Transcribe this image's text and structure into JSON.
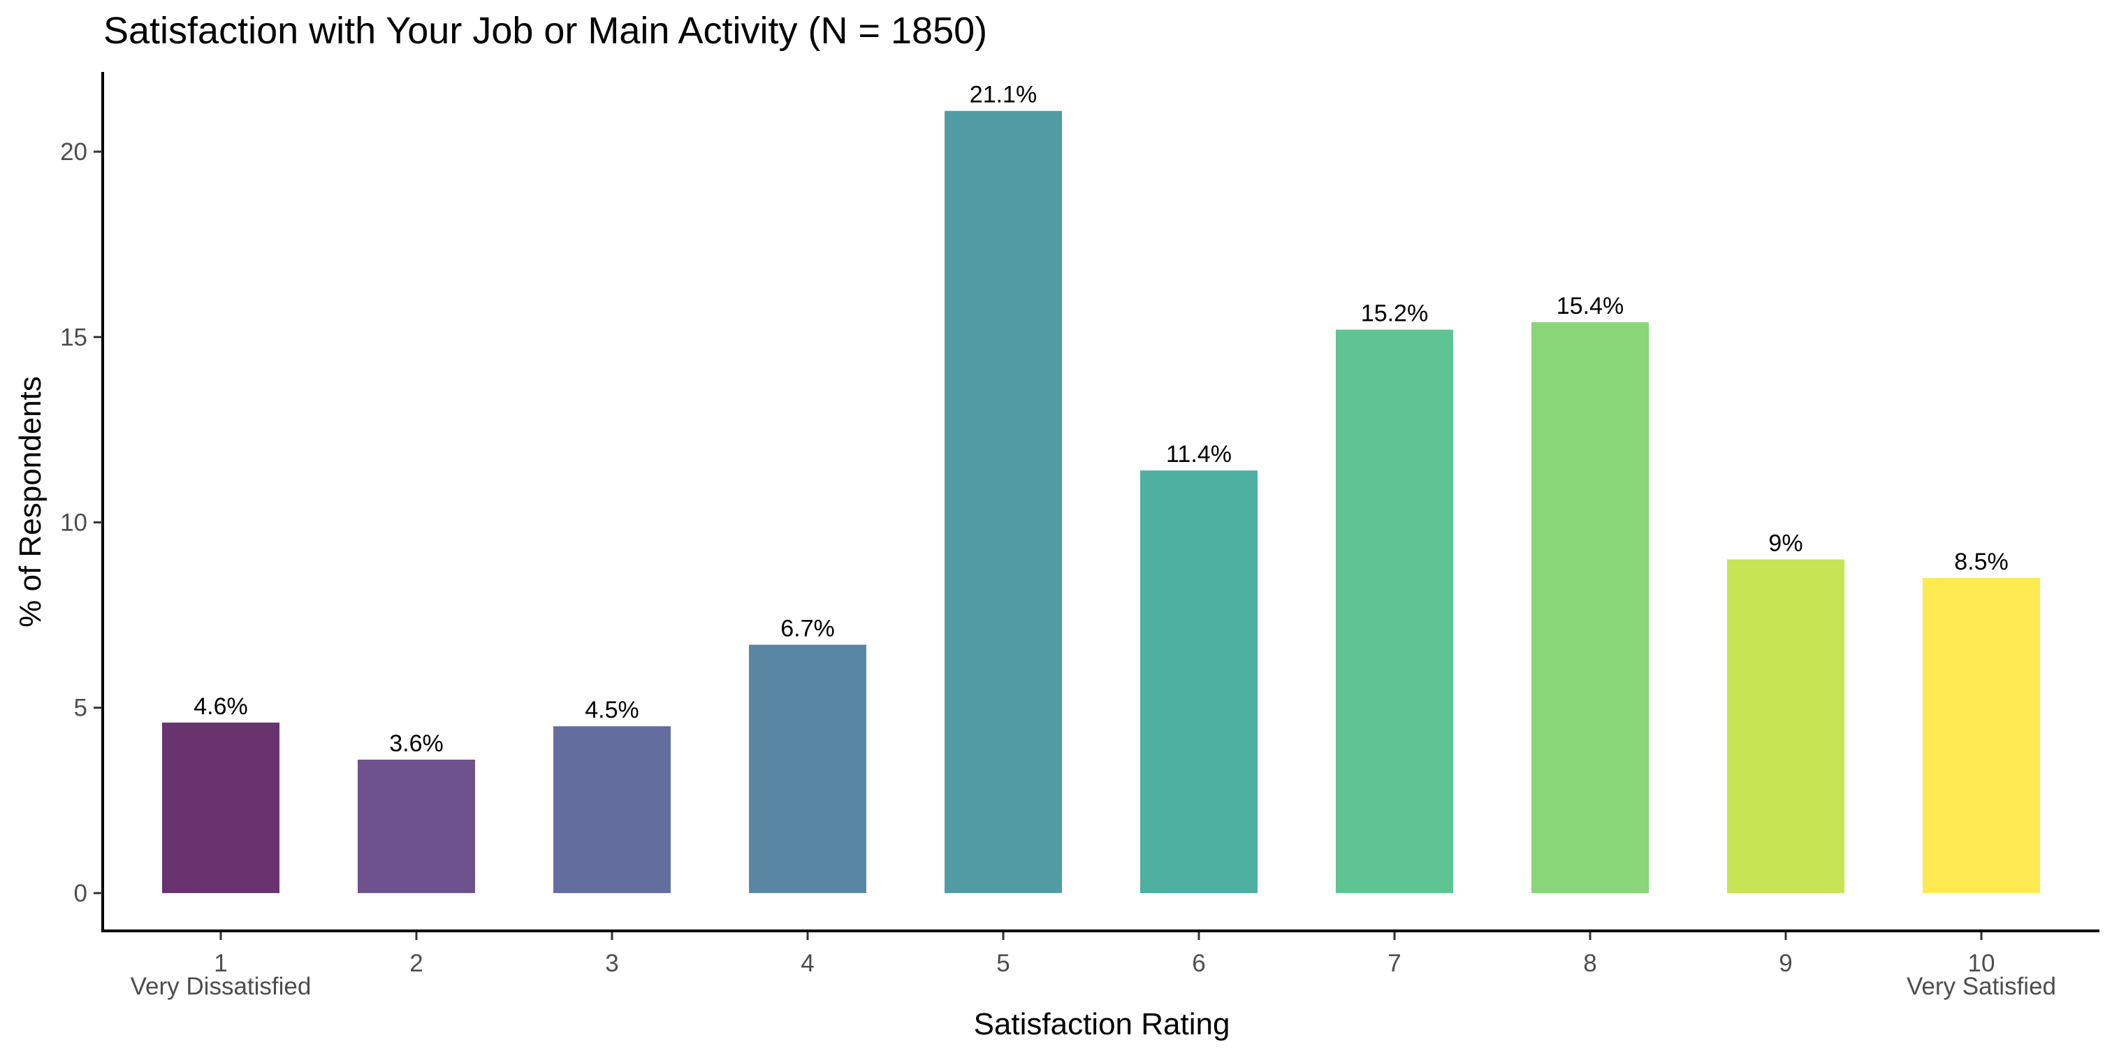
{
  "chart_data": {
    "type": "bar",
    "title": "Satisfaction with Your Job or Main Activity (N = 1850)",
    "xlabel": "Satisfaction Rating",
    "ylabel": "% of Respondents",
    "categories": [
      "1",
      "2",
      "3",
      "4",
      "5",
      "6",
      "7",
      "8",
      "9",
      "10"
    ],
    "values": [
      4.6,
      3.6,
      4.5,
      6.7,
      21.1,
      11.4,
      15.2,
      15.4,
      9,
      8.5
    ],
    "value_labels": [
      "4.6%",
      "3.6%",
      "4.5%",
      "6.7%",
      "21.1%",
      "11.4%",
      "15.2%",
      "15.4%",
      "9%",
      "8.5%"
    ],
    "category_sublabels": [
      "Very Dissatisfied",
      "",
      "",
      "",
      "",
      "",
      "",
      "",
      "",
      "Very Satisfied"
    ],
    "colors": [
      "#68336f",
      "#6e5290",
      "#636e9e",
      "#5987a3",
      "#519ca4",
      "#4db0a1",
      "#5ec592",
      "#88d677",
      "#c6e454",
      "#fcea50"
    ],
    "yticks": [
      0,
      5,
      10,
      15,
      20
    ],
    "ylim": [
      -1.02,
      22.15
    ],
    "grid": false,
    "legend": "none"
  }
}
